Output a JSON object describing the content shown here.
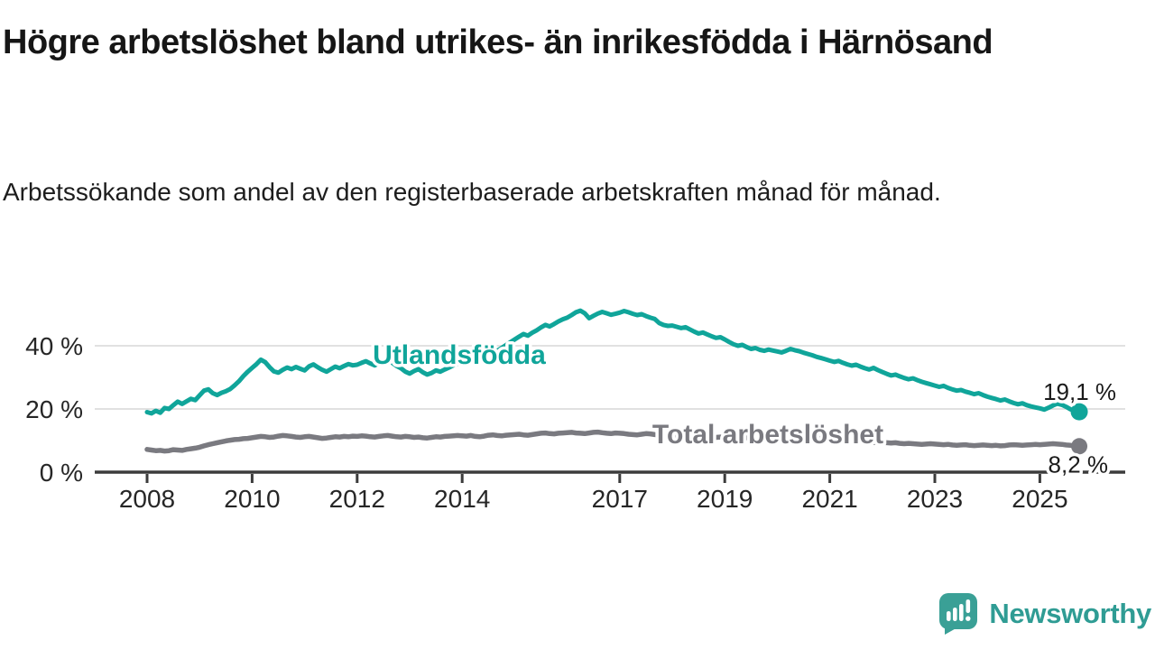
{
  "header": {
    "title": "Högre arbetslöshet bland utrikes- än inrikesfödda i Härnösand",
    "subtitle": "Arbetssökande som andel av den registerbaserade arbetskraften månad för månad."
  },
  "footer": {
    "brand": "Newsworthy",
    "logo_icon": "bar-chart-speech-bubble-icon"
  },
  "colors": {
    "series_foreign_born": "#10a59a",
    "series_total": "#7a7a80",
    "gridline": "#d7d7d7",
    "axis": "#3c3c3c",
    "axis_text": "#262626",
    "annotation_text": "#1a1a1a",
    "brand_teal": "#2f9c94"
  },
  "chart_data": {
    "type": "line",
    "title": "Högre arbetslöshet bland utrikes- än inrikesfödda i Härnösand",
    "subtitle": "Arbetssökande som andel av den registerbaserade arbetskraften månad för månad.",
    "x_unit": "month",
    "x_start": {
      "year": 2008,
      "month": 1
    },
    "x_end": {
      "year": 2025,
      "month": 10
    },
    "xticks": [
      2008,
      2010,
      2012,
      2014,
      2017,
      2019,
      2021,
      2023,
      2025
    ],
    "yticks": [
      0,
      20,
      40
    ],
    "ytick_suffix": " %",
    "ylim": [
      0,
      55
    ],
    "grid": "horizontal",
    "legend_position": "labels-on-chart",
    "series": [
      {
        "name": "Utlandsfödda",
        "color": "#10a59a",
        "end_label": "19,1 %",
        "end_value": 19.1,
        "values": [
          19.0,
          18.6,
          19.4,
          18.8,
          20.3,
          20.0,
          21.2,
          22.3,
          21.6,
          22.4,
          23.2,
          22.8,
          24.3,
          25.8,
          26.2,
          25.0,
          24.4,
          25.1,
          25.6,
          26.3,
          27.5,
          28.8,
          30.4,
          31.8,
          33.0,
          34.2,
          35.6,
          34.8,
          33.2,
          31.9,
          31.5,
          32.4,
          33.1,
          32.6,
          33.3,
          32.7,
          32.2,
          33.5,
          34.1,
          33.2,
          32.4,
          31.8,
          32.6,
          33.4,
          32.9,
          33.6,
          34.2,
          33.8,
          34.0,
          34.6,
          35.1,
          34.4,
          33.8,
          34.5,
          35.0,
          35.4,
          34.6,
          33.6,
          32.9,
          31.8,
          31.2,
          32.0,
          32.6,
          31.6,
          30.9,
          31.4,
          32.2,
          31.8,
          32.5,
          33.1,
          33.8,
          34.4,
          35.0,
          35.8,
          36.4,
          35.9,
          36.6,
          37.3,
          38.1,
          38.9,
          38.4,
          39.3,
          40.2,
          41.1,
          42.0,
          42.9,
          43.7,
          43.2,
          44.1,
          44.9,
          45.8,
          46.6,
          46.1,
          46.9,
          47.7,
          48.4,
          48.9,
          49.7,
          50.6,
          51.1,
          50.3,
          48.7,
          49.5,
          50.2,
          50.7,
          50.3,
          49.8,
          50.1,
          50.5,
          51.0,
          50.6,
          50.1,
          49.7,
          50.0,
          49.4,
          48.9,
          48.5,
          47.2,
          46.6,
          46.3,
          46.4,
          46.0,
          45.6,
          45.9,
          45.2,
          44.5,
          43.9,
          44.2,
          43.6,
          43.0,
          42.5,
          42.7,
          42.0,
          41.2,
          40.5,
          40.0,
          40.3,
          39.6,
          39.0,
          39.3,
          38.7,
          38.4,
          38.8,
          38.5,
          38.2,
          37.9,
          38.4,
          39.0,
          38.6,
          38.3,
          37.8,
          37.4,
          37.0,
          36.5,
          36.1,
          35.7,
          35.3,
          34.9,
          35.2,
          34.6,
          34.1,
          33.7,
          34.0,
          33.4,
          32.9,
          32.5,
          33.0,
          32.3,
          31.7,
          31.1,
          30.6,
          30.9,
          30.3,
          29.8,
          29.4,
          29.7,
          29.1,
          28.6,
          28.2,
          27.8,
          27.4,
          27.0,
          27.3,
          26.7,
          26.2,
          25.8,
          26.0,
          25.5,
          25.1,
          24.7,
          25.0,
          24.4,
          23.9,
          23.5,
          23.1,
          22.7,
          23.0,
          22.4,
          21.9,
          21.5,
          21.8,
          21.2,
          20.8,
          20.5,
          20.2,
          19.8,
          20.4,
          21.1,
          21.7,
          21.3,
          20.7,
          19.9,
          19.4,
          19.1
        ]
      },
      {
        "name": "Total arbetslöshet",
        "color": "#7a7a80",
        "end_label": "8,2 %",
        "end_value": 8.2,
        "values": [
          7.2,
          7.0,
          6.8,
          6.9,
          6.7,
          6.8,
          7.1,
          7.0,
          6.9,
          7.2,
          7.4,
          7.6,
          7.9,
          8.3,
          8.7,
          9.0,
          9.3,
          9.6,
          9.9,
          10.1,
          10.3,
          10.4,
          10.6,
          10.7,
          10.9,
          11.1,
          11.3,
          11.2,
          11.0,
          11.1,
          11.4,
          11.6,
          11.5,
          11.3,
          11.1,
          11.0,
          11.2,
          11.3,
          11.1,
          10.9,
          10.7,
          10.8,
          11.0,
          11.2,
          11.1,
          11.3,
          11.2,
          11.4,
          11.3,
          11.5,
          11.4,
          11.2,
          11.1,
          11.3,
          11.5,
          11.6,
          11.4,
          11.2,
          11.1,
          11.3,
          11.2,
          11.0,
          11.1,
          10.9,
          10.8,
          11.0,
          11.2,
          11.1,
          11.3,
          11.4,
          11.5,
          11.6,
          11.5,
          11.4,
          11.6,
          11.3,
          11.2,
          11.4,
          11.7,
          11.8,
          11.6,
          11.5,
          11.7,
          11.8,
          11.9,
          12.0,
          11.8,
          11.7,
          11.9,
          12.1,
          12.3,
          12.4,
          12.2,
          12.1,
          12.3,
          12.4,
          12.5,
          12.6,
          12.4,
          12.3,
          12.2,
          12.4,
          12.6,
          12.7,
          12.5,
          12.3,
          12.2,
          12.4,
          12.3,
          12.2,
          12.0,
          11.9,
          11.8,
          12.0,
          12.2,
          12.1,
          11.9,
          11.8,
          11.6,
          11.7,
          11.6,
          11.5,
          11.3,
          11.2,
          11.1,
          11.3,
          11.5,
          11.4,
          11.2,
          11.1,
          11.0,
          11.1,
          11.0,
          10.9,
          10.8,
          10.7,
          10.8,
          10.9,
          11.1,
          11.0,
          10.8,
          10.7,
          10.8,
          10.9,
          11.0,
          11.1,
          11.3,
          11.6,
          11.5,
          11.4,
          11.2,
          11.1,
          10.9,
          10.8,
          10.6,
          10.5,
          10.4,
          10.3,
          10.2,
          10.0,
          9.9,
          9.8,
          9.9,
          9.8,
          9.6,
          9.5,
          9.4,
          9.5,
          9.4,
          9.3,
          9.2,
          9.3,
          9.1,
          9.0,
          9.1,
          9.0,
          8.9,
          8.8,
          8.9,
          9.0,
          8.9,
          8.8,
          8.7,
          8.8,
          8.6,
          8.5,
          8.6,
          8.7,
          8.5,
          8.4,
          8.5,
          8.6,
          8.5,
          8.4,
          8.5,
          8.3,
          8.4,
          8.6,
          8.7,
          8.6,
          8.5,
          8.6,
          8.7,
          8.8,
          8.7,
          8.8,
          8.9,
          9.0,
          8.9,
          8.8,
          8.6,
          8.5,
          8.3,
          8.2
        ]
      }
    ]
  }
}
